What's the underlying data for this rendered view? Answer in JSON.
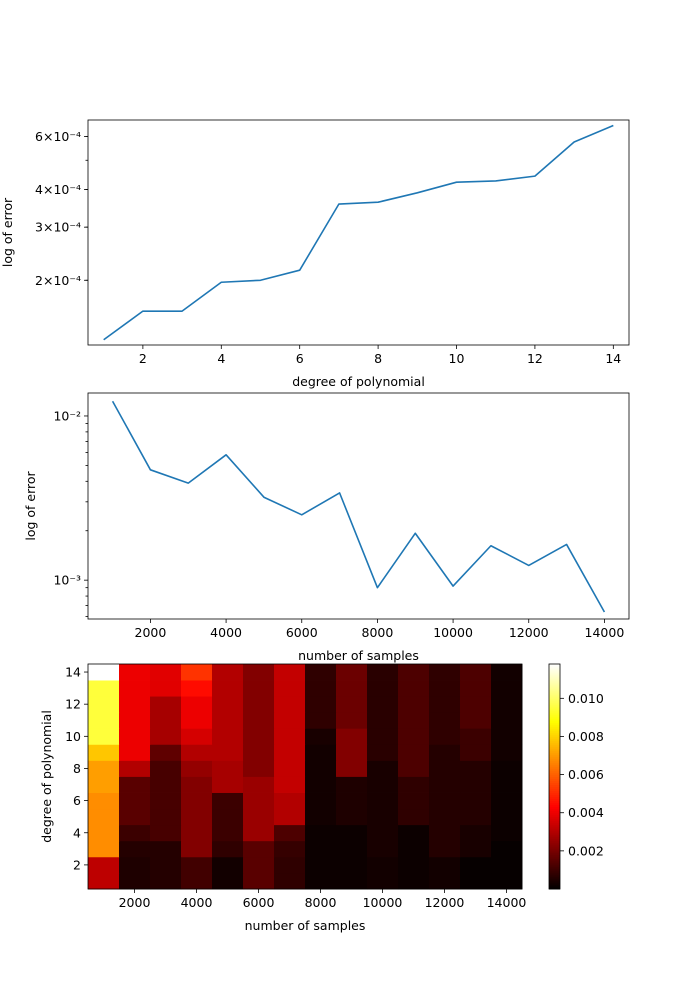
{
  "chart_data": [
    {
      "type": "line",
      "xlabel": "degree of polynomial",
      "ylabel": "log of error",
      "yscale": "log",
      "xlim": [
        0.6,
        14.4
      ],
      "ylim": [
        0.000122,
        0.00068
      ],
      "xticks": [
        2,
        4,
        6,
        8,
        10,
        12,
        14
      ],
      "xtick_labels": [
        "2",
        "4",
        "6",
        "8",
        "10",
        "12",
        "14"
      ],
      "yticks": [
        0.0002,
        0.0003,
        0.0004,
        0.0006
      ],
      "ytick_labels": [
        "2×10⁻⁴",
        "3×10⁻⁴",
        "4×10⁻⁴",
        "6×10⁻⁴"
      ],
      "minor_yticks": [
        0.0002,
        0.0003,
        0.0004,
        0.0005,
        0.0006
      ],
      "grid": false,
      "color": "#1f77b4",
      "x": [
        1,
        2,
        3,
        4,
        5,
        6,
        7,
        8,
        9,
        10,
        11,
        12,
        13,
        14
      ],
      "y": [
        0.000127,
        0.000158,
        0.000158,
        0.000197,
        0.0002,
        0.000216,
        0.000358,
        0.000363,
        0.00039,
        0.000423,
        0.000427,
        0.000443,
        0.000575,
        0.000652
      ]
    },
    {
      "type": "line",
      "xlabel": "number of samples",
      "ylabel": "log of error",
      "yscale": "log",
      "xlim": [
        350,
        14650
      ],
      "ylim": [
        0.00058,
        0.0138
      ],
      "xticks": [
        2000,
        4000,
        6000,
        8000,
        10000,
        12000,
        14000
      ],
      "xtick_labels": [
        "2000",
        "4000",
        "6000",
        "8000",
        "10000",
        "12000",
        "14000"
      ],
      "yticks": [
        0.001,
        0.01
      ],
      "ytick_labels": [
        "10⁻³",
        "10⁻²"
      ],
      "minor_yticks": [
        0.0006,
        0.0007,
        0.0008,
        0.0009,
        0.002,
        0.003,
        0.004,
        0.005,
        0.006,
        0.007,
        0.008,
        0.009
      ],
      "grid": false,
      "color": "#1f77b4",
      "x": [
        1000,
        2000,
        3000,
        4000,
        5000,
        6000,
        7000,
        8000,
        9000,
        10000,
        11000,
        12000,
        13000,
        14000
      ],
      "y": [
        0.0123,
        0.0047,
        0.0039,
        0.0058,
        0.0032,
        0.0025,
        0.0034,
        0.0009,
        0.00193,
        0.00092,
        0.00162,
        0.00123,
        0.00165,
        0.00064
      ]
    },
    {
      "type": "heatmap",
      "xlabel": "number of samples",
      "ylabel": "degree of polynomial",
      "colormap": "hot",
      "vmin": 0.0,
      "vmax": 0.0118,
      "x": [
        1000,
        2000,
        3000,
        4000,
        5000,
        6000,
        7000,
        8000,
        9000,
        10000,
        11000,
        12000,
        13000,
        14000
      ],
      "y": [
        1,
        2,
        3,
        4,
        5,
        6,
        7,
        8,
        9,
        10,
        11,
        12,
        13,
        14
      ],
      "xticks": [
        2000,
        4000,
        6000,
        8000,
        10000,
        12000,
        14000
      ],
      "xtick_labels": [
        "2000",
        "4000",
        "6000",
        "8000",
        "10000",
        "12000",
        "14000"
      ],
      "yticks": [
        2,
        4,
        6,
        8,
        10,
        12,
        14
      ],
      "ytick_labels": [
        "2",
        "4",
        "6",
        "8",
        "10",
        "12",
        "14"
      ],
      "colorbar_ticks": [
        0.002,
        0.004,
        0.006,
        0.008,
        0.01
      ],
      "colorbar_tick_labels": [
        "0.002",
        "0.004",
        "0.006",
        "0.008",
        "0.010"
      ],
      "z": [
        [
          0.0032,
          0.0005,
          0.0006,
          0.0011,
          0.0003,
          0.0015,
          0.0008,
          0.0002,
          0.0002,
          0.0003,
          0.0002,
          0.0003,
          0.0001,
          0.0001
        ],
        [
          0.0032,
          0.0005,
          0.0006,
          0.0011,
          0.0003,
          0.0015,
          0.0008,
          0.0002,
          0.0002,
          0.0003,
          0.0002,
          0.0003,
          0.0001,
          0.0001
        ],
        [
          0.0068,
          0.0006,
          0.0006,
          0.0022,
          0.0008,
          0.0015,
          0.0009,
          0.0002,
          0.0002,
          0.0004,
          0.0002,
          0.0006,
          0.0004,
          0.0001
        ],
        [
          0.0068,
          0.001,
          0.0012,
          0.0022,
          0.001,
          0.0026,
          0.0013,
          0.0002,
          0.0002,
          0.0004,
          0.0002,
          0.0006,
          0.0004,
          0.0002
        ],
        [
          0.0068,
          0.0015,
          0.0012,
          0.0022,
          0.001,
          0.0026,
          0.003,
          0.0003,
          0.0005,
          0.0004,
          0.0008,
          0.0006,
          0.0006,
          0.0002
        ],
        [
          0.0068,
          0.0015,
          0.0012,
          0.0022,
          0.001,
          0.0026,
          0.003,
          0.0003,
          0.0005,
          0.0004,
          0.0008,
          0.0006,
          0.0006,
          0.0002
        ],
        [
          0.0071,
          0.0015,
          0.0012,
          0.0022,
          0.0028,
          0.0026,
          0.0033,
          0.0003,
          0.0005,
          0.0004,
          0.0008,
          0.0006,
          0.0006,
          0.0002
        ],
        [
          0.0071,
          0.003,
          0.0012,
          0.0025,
          0.0028,
          0.0022,
          0.0033,
          0.0003,
          0.0022,
          0.0004,
          0.0013,
          0.0006,
          0.0006,
          0.0002
        ],
        [
          0.0078,
          0.004,
          0.0016,
          0.003,
          0.003,
          0.0022,
          0.0033,
          0.0003,
          0.0022,
          0.0007,
          0.0013,
          0.0006,
          0.001,
          0.0003
        ],
        [
          0.0095,
          0.004,
          0.0028,
          0.0036,
          0.003,
          0.0022,
          0.0033,
          0.0004,
          0.0022,
          0.0007,
          0.0013,
          0.0008,
          0.001,
          0.0003
        ],
        [
          0.0095,
          0.004,
          0.0028,
          0.004,
          0.003,
          0.0022,
          0.0033,
          0.0008,
          0.0018,
          0.0007,
          0.0013,
          0.0008,
          0.0013,
          0.0003
        ],
        [
          0.0095,
          0.004,
          0.0028,
          0.004,
          0.003,
          0.0022,
          0.0033,
          0.0008,
          0.0018,
          0.0007,
          0.0013,
          0.0008,
          0.0013,
          0.0003
        ],
        [
          0.0095,
          0.004,
          0.0038,
          0.0045,
          0.003,
          0.0022,
          0.0033,
          0.0008,
          0.0018,
          0.0007,
          0.0013,
          0.0008,
          0.0013,
          0.0003
        ],
        [
          0.0118,
          0.004,
          0.0038,
          0.0052,
          0.003,
          0.0022,
          0.0033,
          0.0008,
          0.0018,
          0.0007,
          0.0013,
          0.0008,
          0.0013,
          0.0003
        ]
      ]
    }
  ]
}
